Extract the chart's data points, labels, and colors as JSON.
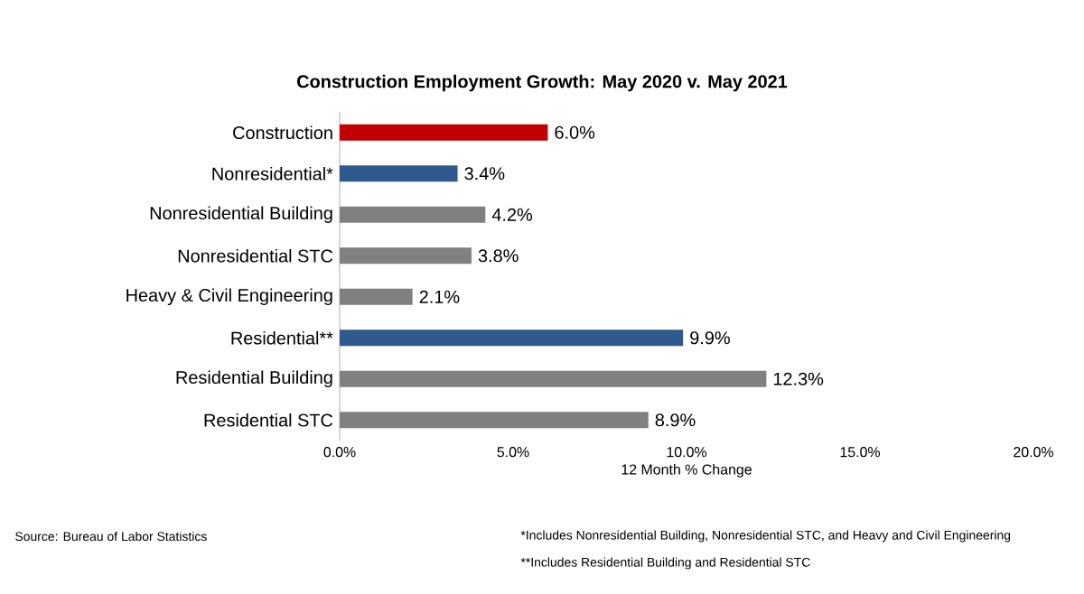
{
  "chart_data": {
    "type": "bar",
    "orientation": "horizontal",
    "title": "Construction Employment Growth: May 2020 v. May 2021",
    "xlabel": "12 Month % Change",
    "categories": [
      "Construction",
      "Nonresidential*",
      "Nonresidential Building",
      "Nonresidential STC",
      "Heavy & Civil Engineering",
      "Residential**",
      "Residential Building",
      "Residential STC"
    ],
    "values": [
      6.0,
      3.4,
      4.2,
      3.8,
      2.1,
      9.9,
      12.3,
      8.9
    ],
    "colors": [
      "#c00000",
      "#2e5a8e",
      "#808080",
      "#808080",
      "#808080",
      "#2e5a8e",
      "#808080",
      "#808080"
    ],
    "value_labels": [
      "6.0%",
      "3.4%",
      "4.2%",
      "3.8%",
      "2.1%",
      "9.9%",
      "12.3%",
      "8.9%"
    ],
    "xlim": [
      0,
      20
    ],
    "xticks": [
      {
        "value": 0,
        "label": "0.0%"
      },
      {
        "value": 5,
        "label": "5.0%"
      },
      {
        "value": 10,
        "label": "10.0%"
      },
      {
        "value": 15,
        "label": "15.0%"
      },
      {
        "value": 20,
        "label": "20.0%"
      }
    ],
    "grid": false,
    "annotations": [
      "Source:  Bureau of Labor Statistics",
      "*Includes Nonresidential Building, Nonresidential STC, and Heavy and Civil Engineering",
      "**Includes Residential Building and Residential STC"
    ]
  }
}
